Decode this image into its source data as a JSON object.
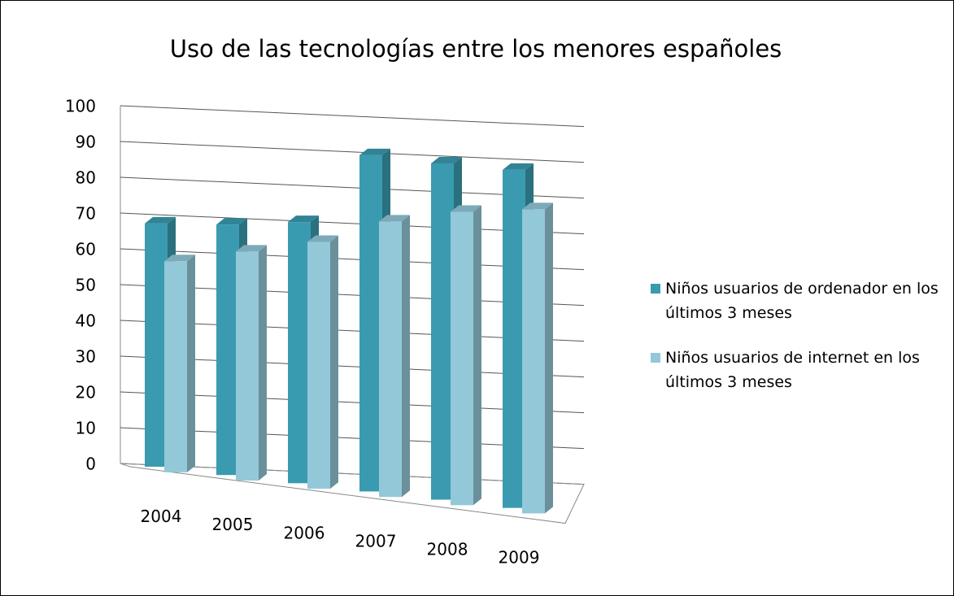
{
  "chart_data": {
    "type": "bar3d",
    "title": "Uso de las tecnologías entre los menores españoles",
    "categories": [
      "2004",
      "2005",
      "2006",
      "2007",
      "2008",
      "2009"
    ],
    "series": [
      {
        "name": "Niños usuarios de ordenador en los últimos 3 meses",
        "color": "#3a9bb0",
        "values": [
          68,
          70,
          73,
          94,
          94,
          94.5
        ]
      },
      {
        "name": "Niños usuarios de internet en los últimos 3 meses",
        "color": "#93c8d9",
        "values": [
          59,
          64,
          69,
          77,
          82,
          85
        ]
      }
    ],
    "ylim": [
      0,
      100
    ],
    "yticks": [
      0,
      10,
      20,
      30,
      40,
      50,
      60,
      70,
      80,
      90,
      100
    ],
    "grid": true,
    "legend": "right"
  }
}
